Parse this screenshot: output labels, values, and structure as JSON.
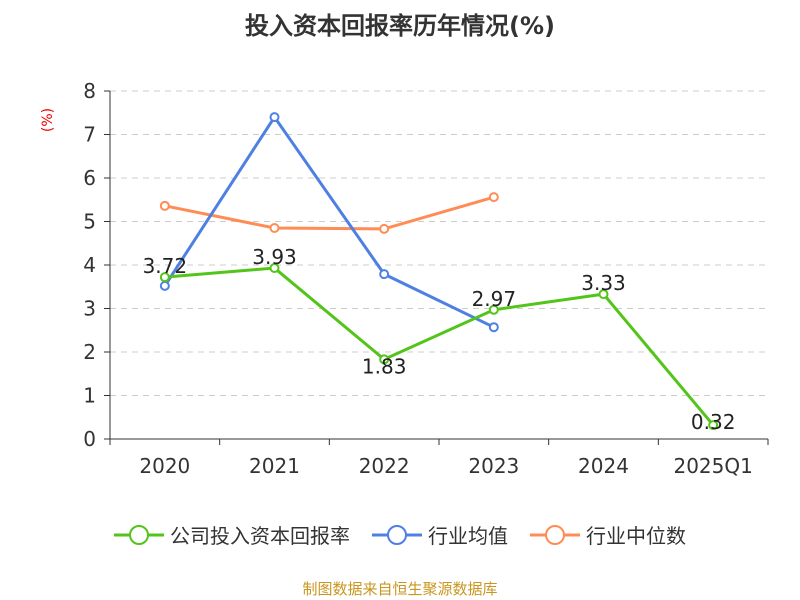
{
  "chart_data": {
    "type": "line",
    "title": "投入资本回报率历年情况(%)",
    "ylabel": "(%)",
    "xlabel": "",
    "categories": [
      "2020",
      "2021",
      "2022",
      "2023",
      "2024",
      "2025Q1"
    ],
    "ylim": [
      0,
      8
    ],
    "yticks": [
      "0",
      "1",
      "2",
      "3",
      "4",
      "5",
      "6",
      "7",
      "8"
    ],
    "grid": true,
    "legend_position": "bottom",
    "series": [
      {
        "name": "公司投入资本回报率",
        "color": "#52c41a",
        "values": [
          3.72,
          3.93,
          1.83,
          2.97,
          3.33,
          0.32
        ],
        "labels": [
          "3.72",
          "3.93",
          "1.83",
          "2.97",
          "3.33",
          "0.32"
        ]
      },
      {
        "name": "行业均值",
        "color": "#4e80e4",
        "values": [
          3.52,
          7.4,
          3.79,
          2.57,
          null,
          null
        ]
      },
      {
        "name": "行业中位数",
        "color": "#ff8c55",
        "values": [
          5.36,
          4.85,
          4.83,
          5.56,
          null,
          null
        ]
      }
    ]
  },
  "source": "制图数据来自恒生聚源数据库"
}
